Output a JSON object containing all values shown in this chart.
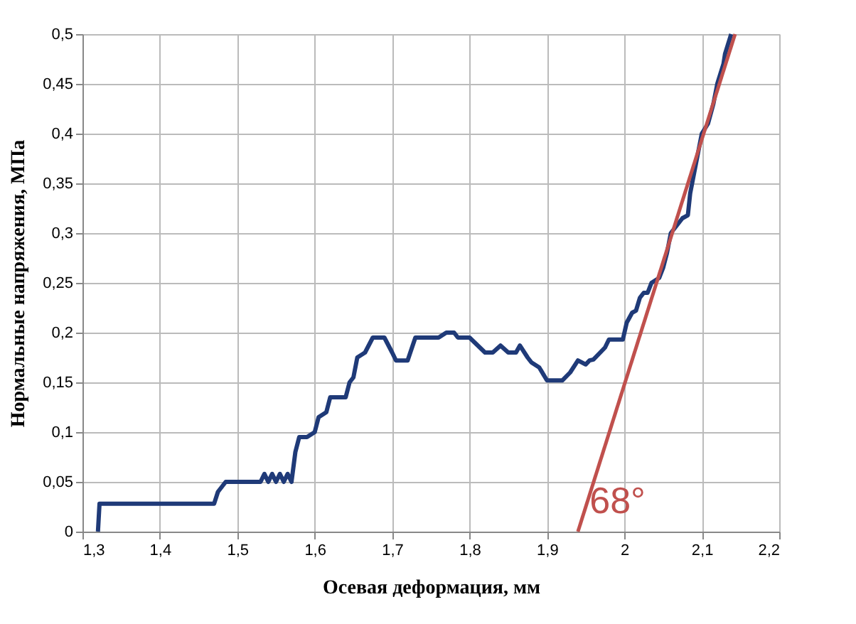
{
  "chart_data": {
    "type": "line",
    "xlabel": "Осевая деформация, мм",
    "ylabel": "Нормальные напряжения, МПа",
    "xlim": [
      1.3,
      2.2
    ],
    "ylim": [
      0,
      0.5
    ],
    "xticks": [
      {
        "value": 1.3,
        "label": "1,3"
      },
      {
        "value": 1.4,
        "label": "1,4"
      },
      {
        "value": 1.5,
        "label": "1,5"
      },
      {
        "value": 1.6,
        "label": "1,6"
      },
      {
        "value": 1.7,
        "label": "1,7"
      },
      {
        "value": 1.8,
        "label": "1,8"
      },
      {
        "value": 1.9,
        "label": "1,9"
      },
      {
        "value": 2,
        "label": "2"
      },
      {
        "value": 2.1,
        "label": "2,1"
      },
      {
        "value": 2.2,
        "label": "2,2"
      }
    ],
    "yticks": [
      0,
      {
        "value": 0.05,
        "label": "0,05"
      },
      {
        "value": 0.1,
        "label": "0,1"
      },
      {
        "value": 0.15,
        "label": "0,15"
      },
      {
        "value": 0.2,
        "label": "0,2"
      },
      {
        "value": 0.25,
        "label": "0,25"
      },
      {
        "value": 0.3,
        "label": "0,3"
      },
      {
        "value": 0.35,
        "label": "0,35"
      },
      {
        "value": 0.4,
        "label": "0,4"
      },
      {
        "value": 0.45,
        "label": "0,45"
      },
      {
        "value": 0.5,
        "label": "0,5"
      }
    ],
    "grid": true,
    "marker": "none",
    "line_style": "solid",
    "series": [
      {
        "color": "#1f3a78",
        "x": [
          1.32,
          1.322,
          1.47,
          1.475,
          1.48,
          1.485,
          1.53,
          1.535,
          1.54,
          1.545,
          1.55,
          1.555,
          1.56,
          1.565,
          1.57,
          1.575,
          1.58,
          1.59,
          1.6,
          1.605,
          1.615,
          1.62,
          1.64,
          1.645,
          1.65,
          1.655,
          1.665,
          1.675,
          1.69,
          1.7,
          1.705,
          1.72,
          1.73,
          1.76,
          1.77,
          1.78,
          1.785,
          1.8,
          1.82,
          1.83,
          1.84,
          1.85,
          1.86,
          1.865,
          1.875,
          1.88,
          1.89,
          1.9,
          1.92,
          1.93,
          1.94,
          1.95,
          1.955,
          1.96,
          1.975,
          1.98,
          1.998,
          2.003,
          2.01,
          2.015,
          2.02,
          2.025,
          2.03,
          2.035,
          2.045,
          2.05,
          2.055,
          2.06,
          2.07,
          2.075,
          2.082,
          2.085,
          2.09,
          2.095,
          2.1,
          2.108,
          2.115,
          2.12,
          2.128,
          2.13,
          2.138
        ],
        "values": [
          0,
          0.028,
          0.028,
          0.04,
          0.045,
          0.05,
          0.05,
          0.058,
          0.05,
          0.058,
          0.05,
          0.058,
          0.05,
          0.058,
          0.05,
          0.08,
          0.095,
          0.095,
          0.1,
          0.115,
          0.12,
          0.135,
          0.135,
          0.15,
          0.155,
          0.175,
          0.18,
          0.195,
          0.195,
          0.18,
          0.172,
          0.172,
          0.195,
          0.195,
          0.2,
          0.2,
          0.195,
          0.195,
          0.18,
          0.18,
          0.187,
          0.18,
          0.18,
          0.187,
          0.175,
          0.17,
          0.165,
          0.152,
          0.152,
          0.16,
          0.172,
          0.168,
          0.172,
          0.173,
          0.185,
          0.193,
          0.193,
          0.21,
          0.22,
          0.222,
          0.235,
          0.24,
          0.24,
          0.25,
          0.255,
          0.265,
          0.28,
          0.3,
          0.31,
          0.315,
          0.318,
          0.34,
          0.36,
          0.38,
          0.4,
          0.41,
          0.43,
          0.45,
          0.47,
          0.48,
          0.5
        ]
      },
      {
        "type": "line",
        "color": "#c0504d",
        "x": [
          1.94,
          2.143
        ],
        "values": [
          0,
          0.5
        ]
      }
    ],
    "annotations": [
      {
        "text": "68°",
        "x": 1.955,
        "y": 0.03
      }
    ]
  }
}
